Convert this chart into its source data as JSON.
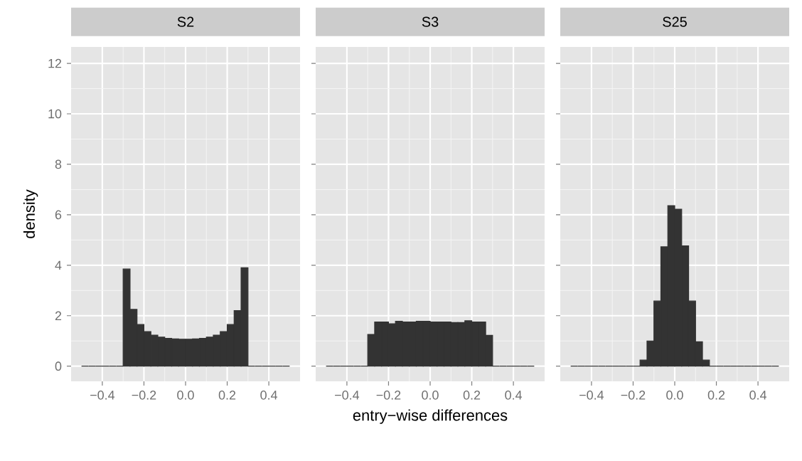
{
  "chart_data": [
    {
      "type": "histogram",
      "title": "S2",
      "ylabel": "density",
      "color": "#333333",
      "grid": true,
      "bins": [
        -0.5,
        -0.4667,
        -0.4333,
        -0.4,
        -0.3667,
        -0.3333,
        -0.3,
        -0.2667,
        -0.2333,
        -0.2,
        -0.1667,
        -0.1333,
        -0.1,
        -0.0667,
        -0.0333,
        0,
        0.0333,
        0.0667,
        0.1,
        0.1333,
        0.1667,
        0.2,
        0.2333,
        0.2667,
        0.3,
        0.3333,
        0.3667,
        0.4,
        0.4333,
        0.4667,
        0.5
      ],
      "values": [
        0,
        0,
        0,
        0,
        0,
        0,
        3.85,
        2.25,
        1.65,
        1.37,
        1.23,
        1.15,
        1.1,
        1.08,
        1.07,
        1.07,
        1.08,
        1.1,
        1.15,
        1.23,
        1.37,
        1.65,
        2.2,
        3.9,
        0,
        0,
        0,
        0,
        0,
        0
      ],
      "xlim": [
        -0.55,
        0.55
      ],
      "ylim": [
        -0.6,
        12.65
      ],
      "xticks": [
        {
          "value": -0.4,
          "label": "−0.4"
        },
        {
          "value": -0.2,
          "label": "−0.2"
        },
        {
          "value": 0,
          "label": "0.0"
        },
        {
          "value": 0.2,
          "label": "0.2"
        },
        {
          "value": 0.4,
          "label": "0.4"
        }
      ],
      "yticks": [
        0,
        2,
        4,
        6,
        8,
        10,
        12
      ]
    },
    {
      "type": "histogram",
      "title": "S3",
      "xlabel": "entry−wise differences",
      "color": "#333333",
      "grid": true,
      "tick_labels": "x",
      "bins": [
        -0.5,
        -0.4667,
        -0.4333,
        -0.4,
        -0.3667,
        -0.3333,
        -0.3,
        -0.2667,
        -0.2333,
        -0.2,
        -0.1667,
        -0.1333,
        -0.1,
        -0.0667,
        -0.0333,
        0,
        0.0333,
        0.0667,
        0.1,
        0.1333,
        0.1667,
        0.2,
        0.2333,
        0.2667,
        0.3,
        0.3333,
        0.3667,
        0.4,
        0.4333,
        0.4667,
        0.5
      ],
      "values": [
        0,
        0,
        0,
        0,
        0,
        0,
        1.26,
        1.75,
        1.75,
        1.68,
        1.78,
        1.75,
        1.75,
        1.78,
        1.78,
        1.75,
        1.75,
        1.75,
        1.73,
        1.73,
        1.8,
        1.75,
        1.75,
        1.22,
        0,
        0,
        0,
        0,
        0,
        0
      ],
      "xlim": [
        -0.55,
        0.55
      ],
      "ylim": [
        -0.6,
        12.65
      ],
      "xticks": [
        {
          "value": -0.4,
          "label": "−0.4"
        },
        {
          "value": -0.2,
          "label": "−0.2"
        },
        {
          "value": 0,
          "label": "0.0"
        },
        {
          "value": 0.2,
          "label": "0.2"
        },
        {
          "value": 0.4,
          "label": "0.4"
        }
      ],
      "yticks": [
        0,
        2,
        4,
        6,
        8,
        10,
        12
      ]
    },
    {
      "type": "histogram",
      "title": "S25",
      "color": "#333333",
      "grid": true,
      "tick_labels": "x",
      "bins": [
        -0.5,
        -0.4667,
        -0.4333,
        -0.4,
        -0.3667,
        -0.3333,
        -0.3,
        -0.2667,
        -0.2333,
        -0.2,
        -0.1667,
        -0.1333,
        -0.1,
        -0.0667,
        -0.0333,
        0,
        0.0333,
        0.0667,
        0.1,
        0.1333,
        0.1667,
        0.2,
        0.2333,
        0.2667,
        0.3,
        0.3333,
        0.3667,
        0.4,
        0.4333,
        0.4667,
        0.5
      ],
      "values": [
        0,
        0,
        0,
        0,
        0,
        0,
        0,
        0,
        0,
        0,
        0.24,
        1.0,
        2.58,
        4.73,
        6.36,
        6.22,
        4.77,
        2.58,
        0.97,
        0.24,
        0,
        0,
        0,
        0,
        0,
        0,
        0,
        0,
        0,
        0
      ],
      "xlim": [
        -0.55,
        0.55
      ],
      "ylim": [
        -0.6,
        12.65
      ],
      "xticks": [
        {
          "value": -0.4,
          "label": "−0.4"
        },
        {
          "value": -0.2,
          "label": "−0.2"
        },
        {
          "value": 0,
          "label": "0.0"
        },
        {
          "value": 0.2,
          "label": "0.2"
        },
        {
          "value": 0.4,
          "label": "0.4"
        }
      ],
      "yticks": [
        0,
        2,
        4,
        6,
        8,
        10,
        12
      ]
    }
  ]
}
